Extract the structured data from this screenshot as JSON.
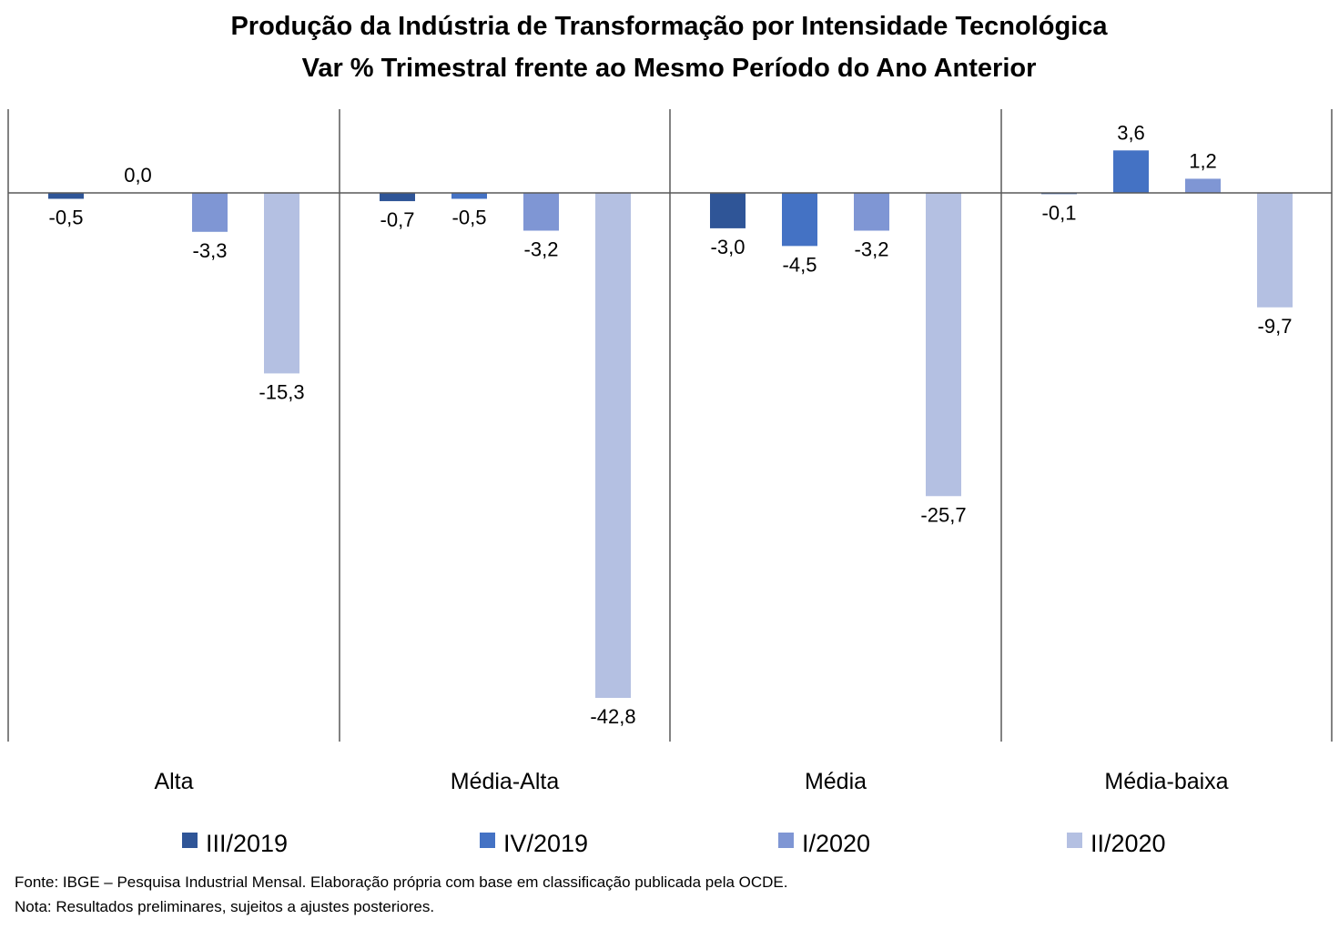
{
  "chart_data": {
    "type": "bar",
    "title": "Produção da Indústria de Transformação por Intensidade Tecnológica",
    "subtitle": "Var % Trimestral frente ao Mesmo Período do Ano Anterior",
    "categories": [
      "Alta",
      "Média-Alta",
      "Média",
      "Média-baixa"
    ],
    "series": [
      {
        "name": "III/2019",
        "color": "#2f5597",
        "values": [
          -0.5,
          -0.7,
          -3.0,
          -0.1
        ]
      },
      {
        "name": "IV/2019",
        "color": "#4472c4",
        "values": [
          0.0,
          -0.5,
          -4.5,
          3.6
        ]
      },
      {
        "name": "I/2020",
        "color": "#7f96d4",
        "values": [
          -3.3,
          -3.2,
          -3.2,
          1.2
        ]
      },
      {
        "name": "II/2020",
        "color": "#b4c0e2",
        "values": [
          -15.3,
          -42.8,
          -25.7,
          -9.7
        ]
      }
    ],
    "data_labels": [
      [
        "-0,5",
        "-0,7",
        "-3,0",
        "-0,1"
      ],
      [
        "0,0",
        "-0,5",
        "-4,5",
        "3,6"
      ],
      [
        "-3,3",
        "-3,2",
        "-3,2",
        "1,2"
      ],
      [
        "-15,3",
        "-42,8",
        "-25,7",
        "-9,7"
      ]
    ],
    "ylim": [
      -46,
      7
    ],
    "grid": false,
    "legend_position": "bottom"
  },
  "footnotes": {
    "source": "Fonte: IBGE – Pesquisa Industrial Mensal. Elaboração própria com base em classificação publicada pela OCDE.",
    "note": "Nota: Resultados preliminares, sujeitos a ajustes posteriores."
  }
}
